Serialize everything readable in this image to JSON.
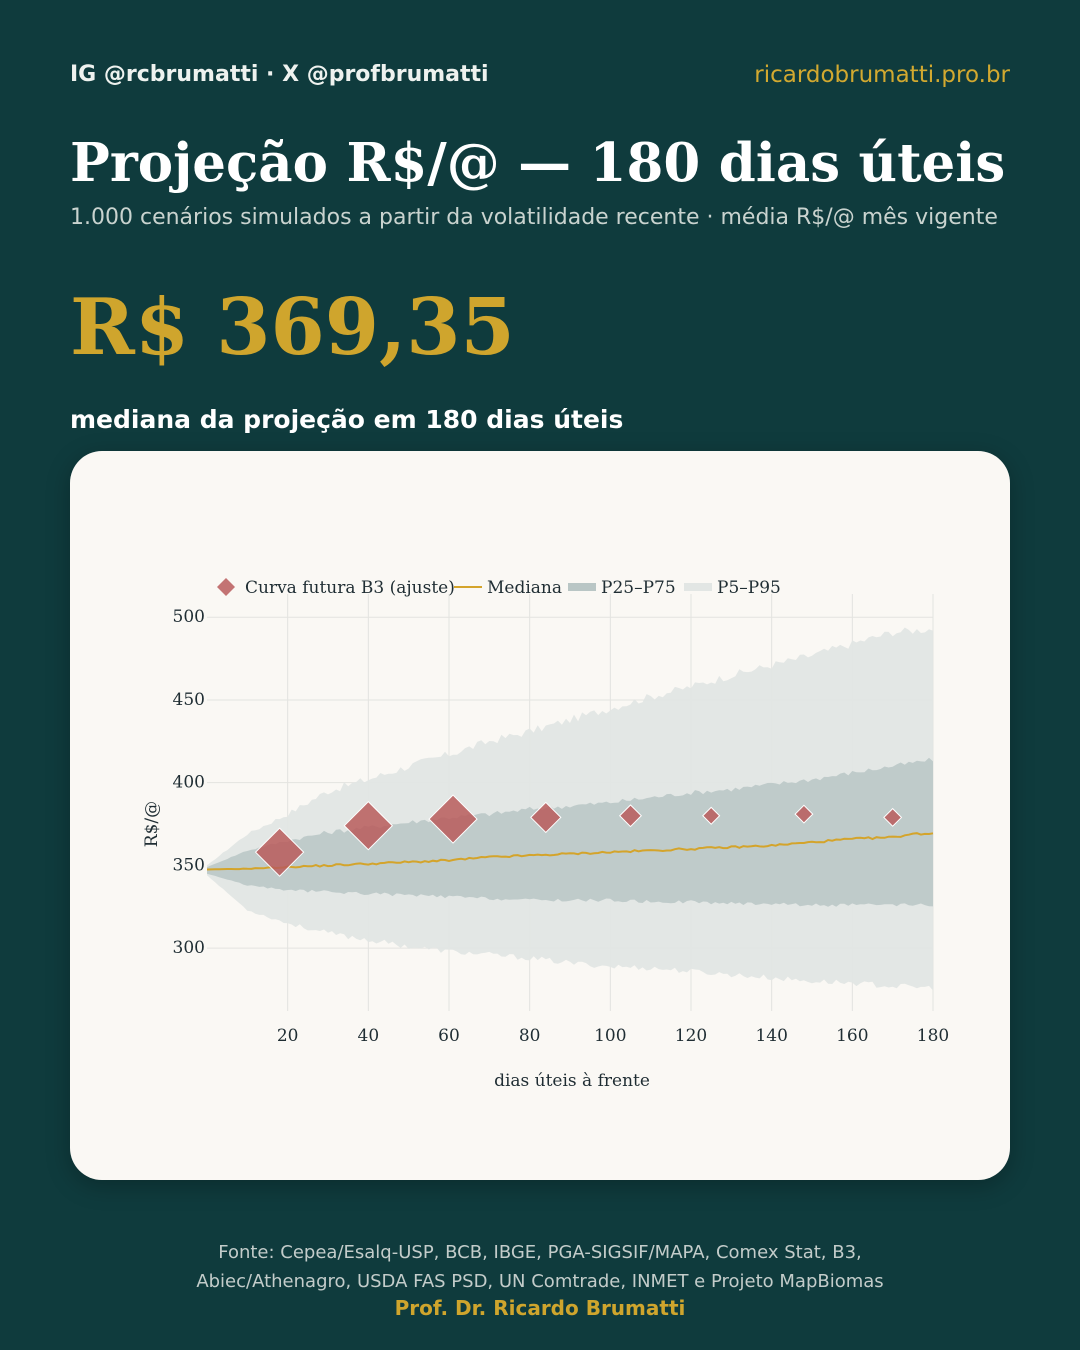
{
  "header": {
    "social": "IG @rcbrumatti · X @profbrumatti",
    "website": "ricardobrumatti.pro.br"
  },
  "title": "Projeção R$/@ — 180 dias úteis",
  "subtitle": "1.000 cenários simulados a partir da volatilidade recente · média R$/@ mês vigente",
  "headline": {
    "value": "R$ 369,35",
    "caption": "mediana da projeção em 180 dias úteis"
  },
  "footer": {
    "source_line1": "Fonte: Cepea/Esalq-USP, BCB, IBGE, PGA-SIGSIF/MAPA, Comex Stat, B3,",
    "source_line2": "Abiec/Athenagro, USDA FAS PSD, UN Comtrade, INMET e Projeto MapBiomas",
    "author": "Prof. Dr. Ricardo Brumatti"
  },
  "colors": {
    "background": "#0f3b3d",
    "accent": "#cfa52d",
    "band_p5_p95": "#e2e6e4",
    "band_p25_p75": "#b9c6c5",
    "median": "#d4a42b",
    "futures": "#b85c5c"
  },
  "chart_data": {
    "type": "area",
    "xlabel": "dias úteis à frente",
    "ylabel": "R$/@",
    "xlim": [
      0,
      180
    ],
    "ylim": [
      262,
      508
    ],
    "x_ticks": [
      20,
      40,
      60,
      80,
      100,
      120,
      140,
      160,
      180
    ],
    "y_ticks": [
      300,
      350,
      400,
      450,
      500
    ],
    "grid": true,
    "legend_position": "top",
    "legend": [
      {
        "label": "Curva futura B3 (ajuste)",
        "kind": "marker"
      },
      {
        "label": "Mediana",
        "kind": "line"
      },
      {
        "label": "P25–P75",
        "kind": "band"
      },
      {
        "label": "P5–P95",
        "kind": "band"
      }
    ],
    "series": [
      {
        "name": "P5–P95",
        "kind": "band",
        "x": [
          0,
          10,
          20,
          30,
          40,
          50,
          60,
          70,
          80,
          90,
          100,
          110,
          120,
          130,
          140,
          150,
          160,
          170,
          180
        ],
        "lower": [
          344,
          323,
          315,
          309,
          305,
          301,
          298,
          296,
          294,
          291,
          289,
          288,
          286,
          284,
          282,
          280,
          279,
          277,
          276
        ],
        "upper": [
          350,
          369,
          381,
          395,
          402,
          410,
          417,
          425,
          431,
          438,
          445,
          452,
          458,
          465,
          471,
          477,
          484,
          491,
          493
        ]
      },
      {
        "name": "P25–P75",
        "kind": "band",
        "x": [
          0,
          10,
          20,
          30,
          40,
          50,
          60,
          70,
          80,
          90,
          100,
          110,
          120,
          130,
          140,
          150,
          160,
          170,
          180
        ],
        "lower": [
          345,
          338,
          335,
          334,
          333,
          332,
          331,
          330,
          329,
          329,
          329,
          328,
          328,
          327,
          327,
          326,
          326,
          326,
          326
        ],
        "upper": [
          349,
          359,
          365,
          370,
          373,
          376,
          379,
          381,
          384,
          386,
          388,
          391,
          394,
          396,
          399,
          402,
          406,
          410,
          414
        ]
      },
      {
        "name": "Mediana",
        "kind": "line",
        "x": [
          0,
          10,
          20,
          30,
          40,
          50,
          60,
          70,
          80,
          90,
          100,
          110,
          120,
          130,
          140,
          150,
          160,
          170,
          175,
          180
        ],
        "values": [
          347.5,
          348,
          349,
          350,
          351,
          352,
          353,
          355,
          356,
          357,
          358,
          359,
          360,
          361,
          362,
          364,
          366,
          367,
          369,
          369.35
        ]
      },
      {
        "name": "Curva futura B3 (ajuste)",
        "kind": "marker",
        "x": [
          18,
          40,
          61,
          84,
          105,
          125,
          148,
          170
        ],
        "values": [
          358,
          374,
          378,
          379,
          380,
          380,
          381,
          379
        ],
        "weights": [
          1.0,
          1.0,
          1.0,
          0.55,
          0.34,
          0.22,
          0.24,
          0.24
        ]
      }
    ]
  }
}
